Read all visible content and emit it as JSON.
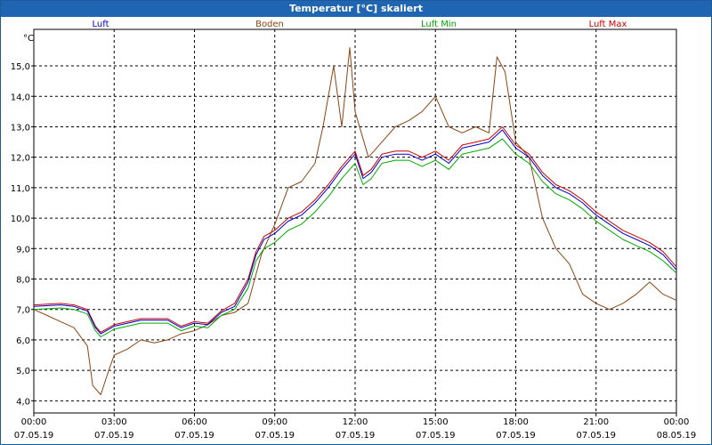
{
  "chart_data": {
    "type": "line",
    "title": "Temperatur [°C] skaliert",
    "ylabel": "°C",
    "ylim": [
      3.6,
      16.2
    ],
    "xlim": [
      0,
      24
    ],
    "grid": true,
    "legend_position": "top",
    "yticks": [
      {
        "value": 4,
        "label": "4,0"
      },
      {
        "value": 5,
        "label": "5,0"
      },
      {
        "value": 6,
        "label": "6,0"
      },
      {
        "value": 7,
        "label": "7,0"
      },
      {
        "value": 8,
        "label": "8,0"
      },
      {
        "value": 9,
        "label": "9,0"
      },
      {
        "value": 10,
        "label": "10,0"
      },
      {
        "value": 11,
        "label": "11,0"
      },
      {
        "value": 12,
        "label": "12,0"
      },
      {
        "value": 13,
        "label": "13,0"
      },
      {
        "value": 14,
        "label": "14,0"
      },
      {
        "value": 15,
        "label": "15,0"
      }
    ],
    "xticks": [
      {
        "value": 0,
        "time": "00:00",
        "date": "07.05.19"
      },
      {
        "value": 3,
        "time": "03:00",
        "date": "07.05.19"
      },
      {
        "value": 6,
        "time": "06:00",
        "date": "07.05.19"
      },
      {
        "value": 9,
        "time": "09:00",
        "date": "07.05.19"
      },
      {
        "value": 12,
        "time": "12:00",
        "date": "07.05.19"
      },
      {
        "value": 15,
        "time": "15:00",
        "date": "07.05.19"
      },
      {
        "value": 18,
        "time": "18:00",
        "date": "07.05.19"
      },
      {
        "value": 21,
        "time": "21:00",
        "date": "07.05.19"
      },
      {
        "value": 24,
        "time": "00:00",
        "date": "08.05.19"
      }
    ],
    "series": [
      {
        "name": "Luft",
        "color": "#0000cc",
        "points": [
          [
            0,
            7.1
          ],
          [
            1,
            7.15
          ],
          [
            1.5,
            7.1
          ],
          [
            2,
            6.95
          ],
          [
            2.3,
            6.4
          ],
          [
            2.5,
            6.2
          ],
          [
            3,
            6.45
          ],
          [
            4,
            6.65
          ],
          [
            5,
            6.65
          ],
          [
            5.5,
            6.4
          ],
          [
            6,
            6.55
          ],
          [
            6.5,
            6.5
          ],
          [
            7,
            6.9
          ],
          [
            7.5,
            7.1
          ],
          [
            8,
            7.9
          ],
          [
            8.3,
            8.8
          ],
          [
            8.6,
            9.3
          ],
          [
            9,
            9.5
          ],
          [
            9.5,
            9.9
          ],
          [
            10,
            10.1
          ],
          [
            10.5,
            10.5
          ],
          [
            11,
            11.0
          ],
          [
            11.5,
            11.6
          ],
          [
            12,
            12.1
          ],
          [
            12.3,
            11.3
          ],
          [
            12.6,
            11.5
          ],
          [
            13,
            12.0
          ],
          [
            13.5,
            12.1
          ],
          [
            14,
            12.1
          ],
          [
            14.5,
            11.9
          ],
          [
            15,
            12.1
          ],
          [
            15.5,
            11.8
          ],
          [
            16,
            12.3
          ],
          [
            16.5,
            12.4
          ],
          [
            17,
            12.5
          ],
          [
            17.5,
            12.9
          ],
          [
            18,
            12.3
          ],
          [
            18.5,
            12.0
          ],
          [
            19,
            11.4
          ],
          [
            19.5,
            11.0
          ],
          [
            20,
            10.8
          ],
          [
            20.5,
            10.5
          ],
          [
            21,
            10.1
          ],
          [
            21.5,
            9.8
          ],
          [
            22,
            9.5
          ],
          [
            22.5,
            9.3
          ],
          [
            23,
            9.1
          ],
          [
            23.5,
            8.8
          ],
          [
            24,
            8.3
          ]
        ]
      },
      {
        "name": "Boden",
        "color": "#8b4513",
        "points": [
          [
            0,
            7.0
          ],
          [
            0.5,
            6.8
          ],
          [
            1,
            6.6
          ],
          [
            1.5,
            6.4
          ],
          [
            2,
            5.8
          ],
          [
            2.2,
            4.5
          ],
          [
            2.5,
            4.2
          ],
          [
            2.8,
            5.0
          ],
          [
            3,
            5.5
          ],
          [
            3.5,
            5.7
          ],
          [
            4,
            6.0
          ],
          [
            4.5,
            5.9
          ],
          [
            5,
            6.0
          ],
          [
            5.5,
            6.2
          ],
          [
            6,
            6.3
          ],
          [
            6.5,
            6.5
          ],
          [
            7,
            6.8
          ],
          [
            7.5,
            6.9
          ],
          [
            8,
            7.2
          ],
          [
            8.5,
            8.8
          ],
          [
            9,
            9.8
          ],
          [
            9.5,
            11.0
          ],
          [
            10,
            11.2
          ],
          [
            10.5,
            11.8
          ],
          [
            10.8,
            13.0
          ],
          [
            11.2,
            15.0
          ],
          [
            11.5,
            13.0
          ],
          [
            11.8,
            15.6
          ],
          [
            12,
            13.5
          ],
          [
            12.5,
            12.0
          ],
          [
            13,
            12.5
          ],
          [
            13.5,
            13.0
          ],
          [
            14,
            13.2
          ],
          [
            14.5,
            13.5
          ],
          [
            15,
            14.0
          ],
          [
            15.5,
            13.0
          ],
          [
            16,
            12.8
          ],
          [
            16.5,
            13.0
          ],
          [
            17,
            12.8
          ],
          [
            17.3,
            15.3
          ],
          [
            17.6,
            14.8
          ],
          [
            18,
            12.5
          ],
          [
            18.5,
            12.0
          ],
          [
            19,
            10.0
          ],
          [
            19.5,
            9.0
          ],
          [
            20,
            8.5
          ],
          [
            20.5,
            7.5
          ],
          [
            21,
            7.2
          ],
          [
            21.5,
            7.0
          ],
          [
            22,
            7.2
          ],
          [
            22.5,
            7.5
          ],
          [
            23,
            7.9
          ],
          [
            23.5,
            7.5
          ],
          [
            24,
            7.3
          ]
        ]
      },
      {
        "name": "Luft Min",
        "color": "#00aa00",
        "points": [
          [
            0,
            7.0
          ],
          [
            1,
            7.05
          ],
          [
            1.5,
            7.0
          ],
          [
            2,
            6.85
          ],
          [
            2.3,
            6.3
          ],
          [
            2.5,
            6.1
          ],
          [
            3,
            6.35
          ],
          [
            4,
            6.55
          ],
          [
            5,
            6.55
          ],
          [
            5.5,
            6.3
          ],
          [
            6,
            6.45
          ],
          [
            6.5,
            6.4
          ],
          [
            7,
            6.8
          ],
          [
            7.5,
            7.0
          ],
          [
            8,
            7.7
          ],
          [
            8.3,
            8.6
          ],
          [
            8.6,
            9.0
          ],
          [
            9,
            9.2
          ],
          [
            9.5,
            9.6
          ],
          [
            10,
            9.8
          ],
          [
            10.5,
            10.2
          ],
          [
            11,
            10.7
          ],
          [
            11.5,
            11.3
          ],
          [
            12,
            11.8
          ],
          [
            12.3,
            11.1
          ],
          [
            12.6,
            11.3
          ],
          [
            13,
            11.8
          ],
          [
            13.5,
            11.9
          ],
          [
            14,
            11.9
          ],
          [
            14.5,
            11.7
          ],
          [
            15,
            11.9
          ],
          [
            15.5,
            11.6
          ],
          [
            16,
            12.1
          ],
          [
            16.5,
            12.2
          ],
          [
            17,
            12.3
          ],
          [
            17.5,
            12.6
          ],
          [
            18,
            12.1
          ],
          [
            18.5,
            11.8
          ],
          [
            19,
            11.2
          ],
          [
            19.5,
            10.8
          ],
          [
            20,
            10.6
          ],
          [
            20.5,
            10.3
          ],
          [
            21,
            9.9
          ],
          [
            21.5,
            9.6
          ],
          [
            22,
            9.3
          ],
          [
            22.5,
            9.1
          ],
          [
            23,
            8.9
          ],
          [
            23.5,
            8.6
          ],
          [
            24,
            8.2
          ]
        ]
      },
      {
        "name": "Luft Max",
        "color": "#cc0000",
        "points": [
          [
            0,
            7.15
          ],
          [
            1,
            7.2
          ],
          [
            1.5,
            7.15
          ],
          [
            2,
            7.0
          ],
          [
            2.3,
            6.45
          ],
          [
            2.5,
            6.25
          ],
          [
            3,
            6.5
          ],
          [
            4,
            6.7
          ],
          [
            5,
            6.7
          ],
          [
            5.5,
            6.45
          ],
          [
            6,
            6.6
          ],
          [
            6.5,
            6.55
          ],
          [
            7,
            6.95
          ],
          [
            7.5,
            7.2
          ],
          [
            8,
            8.0
          ],
          [
            8.3,
            8.9
          ],
          [
            8.6,
            9.4
          ],
          [
            9,
            9.6
          ],
          [
            9.5,
            10.0
          ],
          [
            10,
            10.2
          ],
          [
            10.5,
            10.6
          ],
          [
            11,
            11.1
          ],
          [
            11.5,
            11.7
          ],
          [
            12,
            12.2
          ],
          [
            12.3,
            11.4
          ],
          [
            12.6,
            11.6
          ],
          [
            13,
            12.1
          ],
          [
            13.5,
            12.2
          ],
          [
            14,
            12.2
          ],
          [
            14.5,
            12.0
          ],
          [
            15,
            12.2
          ],
          [
            15.5,
            11.9
          ],
          [
            16,
            12.4
          ],
          [
            16.5,
            12.5
          ],
          [
            17,
            12.6
          ],
          [
            17.5,
            13.0
          ],
          [
            18,
            12.4
          ],
          [
            18.5,
            12.1
          ],
          [
            19,
            11.5
          ],
          [
            19.5,
            11.1
          ],
          [
            20,
            10.9
          ],
          [
            20.5,
            10.6
          ],
          [
            21,
            10.2
          ],
          [
            21.5,
            9.9
          ],
          [
            22,
            9.6
          ],
          [
            22.5,
            9.4
          ],
          [
            23,
            9.2
          ],
          [
            23.5,
            8.9
          ],
          [
            24,
            8.4
          ]
        ]
      }
    ]
  }
}
